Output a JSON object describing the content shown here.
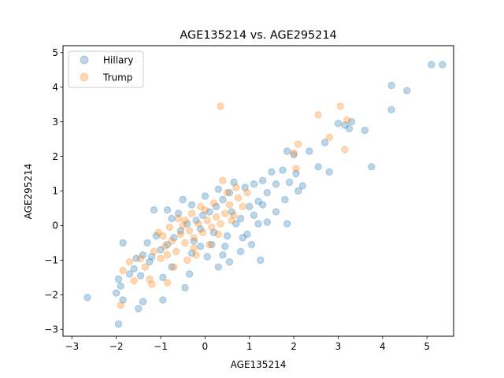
{
  "chart_data": {
    "type": "scatter",
    "title": "AGE135214 vs. AGE295214",
    "xlabel": "AGE135214",
    "ylabel": "AGE295214",
    "xlim": [
      -3.2,
      5.6
    ],
    "ylim": [
      -3.2,
      5.2
    ],
    "xticks": [
      -3,
      -2,
      -1,
      0,
      1,
      2,
      3,
      4,
      5
    ],
    "yticks": [
      -3,
      -2,
      -1,
      0,
      1,
      2,
      3,
      4,
      5
    ],
    "xtick_labels": [
      "−3",
      "−2",
      "−1",
      "0",
      "1",
      "2",
      "3",
      "4",
      "5"
    ],
    "ytick_labels": [
      "−3",
      "−2",
      "−1",
      "0",
      "1",
      "2",
      "3",
      "4",
      "5"
    ],
    "grid": false,
    "legend_position": "top-left",
    "series": [
      {
        "name": "Hillary",
        "color": "#1f77b4",
        "alpha": 0.3,
        "points": [
          [
            -2.65,
            -2.08
          ],
          [
            -1.95,
            -2.85
          ],
          [
            -1.9,
            -1.75
          ],
          [
            -1.95,
            -1.55
          ],
          [
            -2.0,
            -1.95
          ],
          [
            -1.85,
            -2.15
          ],
          [
            -1.5,
            -2.4
          ],
          [
            -1.4,
            -2.2
          ],
          [
            -1.85,
            -0.5
          ],
          [
            -1.6,
            -1.25
          ],
          [
            -1.45,
            -1.45
          ],
          [
            -1.4,
            -0.85
          ],
          [
            -1.25,
            -1.05
          ],
          [
            -1.1,
            -0.3
          ],
          [
            -0.85,
            0.45
          ],
          [
            -1.15,
            0.45
          ],
          [
            -0.95,
            -2.15
          ],
          [
            -0.95,
            -1.5
          ],
          [
            -0.75,
            -1.2
          ],
          [
            -0.45,
            -1.8
          ],
          [
            -0.35,
            -1.4
          ],
          [
            -0.3,
            -0.8
          ],
          [
            -0.1,
            -0.6
          ],
          [
            0.05,
            -0.9
          ],
          [
            0.3,
            -1.2
          ],
          [
            0.4,
            -0.85
          ],
          [
            0.55,
            -1.05
          ],
          [
            0.8,
            -0.75
          ],
          [
            1.25,
            -1.0
          ],
          [
            1.05,
            -0.55
          ],
          [
            0.95,
            -0.25
          ],
          [
            1.2,
            0.05
          ],
          [
            1.4,
            0.1
          ],
          [
            1.6,
            0.4
          ],
          [
            1.8,
            0.75
          ],
          [
            1.85,
            0.05
          ],
          [
            2.1,
            1.0
          ],
          [
            2.05,
            1.5
          ],
          [
            2.2,
            1.15
          ],
          [
            2.35,
            2.15
          ],
          [
            2.55,
            1.7
          ],
          [
            2.7,
            2.4
          ],
          [
            2.8,
            1.55
          ],
          [
            3.0,
            2.95
          ],
          [
            3.15,
            2.9
          ],
          [
            3.3,
            3.0
          ],
          [
            3.25,
            2.8
          ],
          [
            3.6,
            2.75
          ],
          [
            3.75,
            1.7
          ],
          [
            4.2,
            3.35
          ],
          [
            4.2,
            4.05
          ],
          [
            4.55,
            3.9
          ],
          [
            5.1,
            4.65
          ],
          [
            5.35,
            4.65
          ],
          [
            2.0,
            2.05
          ],
          [
            1.85,
            2.15
          ],
          [
            1.75,
            1.6
          ],
          [
            1.5,
            1.55
          ],
          [
            1.3,
            1.3
          ],
          [
            1.1,
            1.2
          ],
          [
            0.9,
            1.1
          ],
          [
            0.65,
            1.25
          ],
          [
            0.55,
            0.95
          ],
          [
            0.4,
            0.75
          ],
          [
            0.25,
            0.55
          ],
          [
            0.1,
            0.4
          ],
          [
            -0.05,
            0.3
          ],
          [
            -0.2,
            0.15
          ],
          [
            -0.4,
            0.05
          ],
          [
            -0.55,
            -0.15
          ],
          [
            -0.7,
            -0.35
          ],
          [
            -0.85,
            -0.55
          ],
          [
            -1.0,
            -0.7
          ],
          [
            -1.2,
            -0.9
          ],
          [
            -0.3,
            0.6
          ],
          [
            -0.5,
            0.75
          ],
          [
            0.0,
            0.85
          ],
          [
            0.3,
            1.05
          ],
          [
            0.6,
            0.4
          ],
          [
            0.8,
            0.2
          ],
          [
            1.0,
            0.55
          ],
          [
            1.2,
            0.7
          ],
          [
            1.4,
            0.95
          ],
          [
            1.6,
            1.2
          ],
          [
            1.9,
            1.25
          ],
          [
            0.5,
            -0.3
          ],
          [
            0.2,
            -0.2
          ],
          [
            -0.1,
            -0.1
          ],
          [
            0.7,
            0.05
          ],
          [
            1.1,
            0.3
          ],
          [
            -0.6,
            0.35
          ],
          [
            -0.75,
            0.2
          ],
          [
            -1.3,
            -0.5
          ],
          [
            -1.55,
            -0.95
          ],
          [
            -1.7,
            -1.4
          ],
          [
            -0.25,
            -0.45
          ],
          [
            0.15,
            -0.55
          ],
          [
            0.45,
            -0.6
          ],
          [
            0.85,
            -0.35
          ],
          [
            1.3,
            0.6
          ]
        ]
      },
      {
        "name": "Trump",
        "color": "#ff7f0e",
        "alpha": 0.3,
        "points": [
          [
            -1.9,
            -2.3
          ],
          [
            -1.85,
            -1.3
          ],
          [
            -1.6,
            -1.6
          ],
          [
            -1.7,
            -1.05
          ],
          [
            -1.45,
            -0.95
          ],
          [
            -1.35,
            -1.2
          ],
          [
            -1.25,
            -1.55
          ],
          [
            -0.85,
            -1.65
          ],
          [
            -1.15,
            -0.75
          ],
          [
            -1.0,
            -0.95
          ],
          [
            -0.9,
            -0.6
          ],
          [
            -0.75,
            -0.45
          ],
          [
            -0.65,
            -0.75
          ],
          [
            -0.55,
            -0.25
          ],
          [
            -0.45,
            -0.5
          ],
          [
            -0.35,
            -0.15
          ],
          [
            -0.25,
            -0.35
          ],
          [
            -0.15,
            0.05
          ],
          [
            -0.05,
            -0.2
          ],
          [
            0.05,
            0.15
          ],
          [
            0.15,
            -0.05
          ],
          [
            0.25,
            0.25
          ],
          [
            0.35,
            0.05
          ],
          [
            0.45,
            0.35
          ],
          [
            0.55,
            0.6
          ],
          [
            0.65,
            0.3
          ],
          [
            0.75,
            0.8
          ],
          [
            0.85,
            0.55
          ],
          [
            0.95,
            0.95
          ],
          [
            -0.6,
            0.2
          ],
          [
            -0.8,
            -0.05
          ],
          [
            -0.95,
            -0.3
          ],
          [
            -0.3,
            0.35
          ],
          [
            0.0,
            0.45
          ],
          [
            0.35,
            3.45
          ],
          [
            2.0,
            2.1
          ],
          [
            2.05,
            1.65
          ],
          [
            2.1,
            2.35
          ],
          [
            2.55,
            3.2
          ],
          [
            2.8,
            2.55
          ],
          [
            3.05,
            3.45
          ],
          [
            3.15,
            2.2
          ],
          [
            3.2,
            3.05
          ],
          [
            -0.4,
            -1.0
          ],
          [
            -0.2,
            -0.85
          ],
          [
            0.1,
            -0.55
          ],
          [
            0.2,
            0.65
          ],
          [
            0.5,
            0.95
          ],
          [
            -1.05,
            -0.2
          ],
          [
            -0.5,
            0.0
          ],
          [
            -0.7,
            -1.2
          ],
          [
            -1.2,
            -1.7
          ],
          [
            0.3,
            -0.25
          ],
          [
            0.6,
            0.15
          ],
          [
            -0.1,
            0.55
          ],
          [
            -0.45,
            0.15
          ],
          [
            -0.85,
            -0.85
          ],
          [
            -0.25,
            -0.65
          ],
          [
            0.4,
            1.3
          ],
          [
            0.7,
            1.1
          ]
        ]
      }
    ]
  }
}
